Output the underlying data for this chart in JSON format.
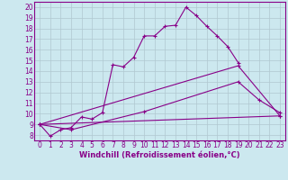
{
  "xlabel": "Windchill (Refroidissement éolien,°C)",
  "x_values": [
    0,
    1,
    2,
    3,
    4,
    5,
    6,
    7,
    8,
    9,
    10,
    11,
    12,
    13,
    14,
    15,
    16,
    17,
    18,
    19,
    20,
    21,
    22,
    23
  ],
  "line1_y": [
    9.0,
    7.9,
    8.5,
    8.7,
    9.7,
    9.5,
    10.1,
    14.6,
    14.4,
    15.3,
    17.3,
    17.3,
    18.2,
    18.3,
    20.0,
    19.2,
    18.2,
    17.3,
    16.3,
    14.8,
    null,
    null,
    null,
    null
  ],
  "line2_pts": [
    [
      0,
      9.0
    ],
    [
      3,
      8.5
    ],
    [
      10,
      10.2
    ],
    [
      19,
      13.0
    ],
    [
      21,
      11.3
    ],
    [
      23,
      10.1
    ]
  ],
  "line3_pts": [
    [
      0,
      9.0
    ],
    [
      23,
      9.8
    ]
  ],
  "line4_pts": [
    [
      0,
      9.0
    ],
    [
      19,
      14.5
    ],
    [
      23,
      9.8
    ]
  ],
  "bg_color": "#cce8ef",
  "line_color": "#880088",
  "grid_color": "#b0c8d0",
  "ylim": [
    7.5,
    20.5
  ],
  "xlim": [
    -0.5,
    23.5
  ],
  "yticks": [
    8,
    9,
    10,
    11,
    12,
    13,
    14,
    15,
    16,
    17,
    18,
    19,
    20
  ],
  "xticks": [
    0,
    1,
    2,
    3,
    4,
    5,
    6,
    7,
    8,
    9,
    10,
    11,
    12,
    13,
    14,
    15,
    16,
    17,
    18,
    19,
    20,
    21,
    22,
    23
  ],
  "tick_fontsize": 5.5,
  "xlabel_fontsize": 6.0
}
